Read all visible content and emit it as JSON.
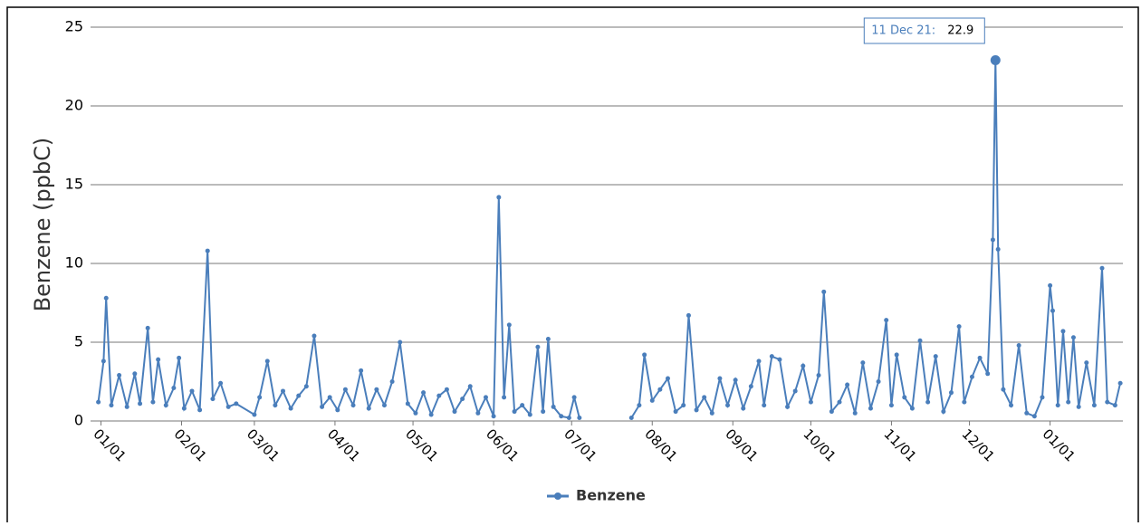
{
  "chart_data": {
    "type": "line",
    "ylabel": "Benzene (ppbC)",
    "xlim": [
      "2020-12-28",
      "2022-01-29"
    ],
    "xticks": [
      {
        "value": "2021-01-01",
        "label": "01/01"
      },
      {
        "value": "2021-02-01",
        "label": "02/01"
      },
      {
        "value": "2021-03-01",
        "label": "03/01"
      },
      {
        "value": "2021-04-01",
        "label": "04/01"
      },
      {
        "value": "2021-05-01",
        "label": "05/01"
      },
      {
        "value": "2021-06-01",
        "label": "06/01"
      },
      {
        "value": "2021-07-01",
        "label": "07/01"
      },
      {
        "value": "2021-08-01",
        "label": "08/01"
      },
      {
        "value": "2021-09-01",
        "label": "09/01"
      },
      {
        "value": "2021-10-01",
        "label": "10/01"
      },
      {
        "value": "2021-11-01",
        "label": "11/01"
      },
      {
        "value": "2021-12-01",
        "label": "12/01"
      },
      {
        "value": "2022-01-01",
        "label": "01/01"
      }
    ],
    "ylim": [
      0,
      25
    ],
    "yticks": [
      0,
      5,
      10,
      15,
      20,
      25
    ],
    "grid": true,
    "legend": "bottom",
    "tooltip": {
      "label": "11 Dec 21:"
    },
    "x": [
      "2020-12-31",
      "2021-01-02",
      "2021-01-03",
      "2021-01-05",
      "2021-01-08",
      "2021-01-11",
      "2021-01-14",
      "2021-01-16",
      "2021-01-19",
      "2021-01-21",
      "2021-01-23",
      "2021-01-26",
      "2021-01-29",
      "2021-01-31",
      "2021-02-02",
      "2021-02-05",
      "2021-02-08",
      "2021-02-11",
      "2021-02-13",
      "2021-02-16",
      "2021-02-19",
      "2021-02-22",
      "2021-03-01",
      "2021-03-03",
      "2021-03-06",
      "2021-03-09",
      "2021-03-12",
      "2021-03-15",
      "2021-03-18",
      "2021-03-21",
      "2021-03-24",
      "2021-03-27",
      "2021-03-30",
      "2021-04-02",
      "2021-04-05",
      "2021-04-08",
      "2021-04-11",
      "2021-04-14",
      "2021-04-17",
      "2021-04-20",
      "2021-04-23",
      "2021-04-26",
      "2021-04-29",
      "2021-05-02",
      "2021-05-05",
      "2021-05-08",
      "2021-05-11",
      "2021-05-14",
      "2021-05-17",
      "2021-05-20",
      "2021-05-23",
      "2021-05-26",
      "2021-05-29",
      "2021-06-01",
      "2021-06-03",
      "2021-06-05",
      "2021-06-07",
      "2021-06-09",
      "2021-06-12",
      "2021-06-15",
      "2021-06-18",
      "2021-06-20",
      "2021-06-22",
      "2021-06-24",
      "2021-06-27",
      "2021-06-30",
      "2021-07-02",
      "2021-07-04",
      "2021-07-12",
      "2021-07-24",
      "2021-07-27",
      "2021-07-29",
      "2021-08-01",
      "2021-08-04",
      "2021-08-07",
      "2021-08-10",
      "2021-08-13",
      "2021-08-15",
      "2021-08-18",
      "2021-08-21",
      "2021-08-24",
      "2021-08-27",
      "2021-08-30",
      "2021-09-02",
      "2021-09-05",
      "2021-09-08",
      "2021-09-11",
      "2021-09-13",
      "2021-09-16",
      "2021-09-19",
      "2021-09-22",
      "2021-09-25",
      "2021-09-28",
      "2021-10-01",
      "2021-10-04",
      "2021-10-06",
      "2021-10-09",
      "2021-10-12",
      "2021-10-15",
      "2021-10-18",
      "2021-10-21",
      "2021-10-24",
      "2021-10-27",
      "2021-10-30",
      "2021-11-01",
      "2021-11-03",
      "2021-11-06",
      "2021-11-09",
      "2021-11-12",
      "2021-11-15",
      "2021-11-18",
      "2021-11-21",
      "2021-11-24",
      "2021-11-27",
      "2021-11-29",
      "2021-12-02",
      "2021-12-05",
      "2021-12-08",
      "2021-12-10",
      "2021-12-11",
      "2021-12-12",
      "2021-12-14",
      "2021-12-17",
      "2021-12-20",
      "2021-12-23",
      "2021-12-26",
      "2021-12-29",
      "2022-01-01",
      "2022-01-02",
      "2022-01-04",
      "2022-01-06",
      "2022-01-08",
      "2022-01-10",
      "2022-01-12",
      "2022-01-15",
      "2022-01-18",
      "2022-01-21",
      "2022-01-23",
      "2022-01-26",
      "2022-01-28"
    ],
    "series": [
      {
        "name": "Benzene",
        "color": "#4a7ebb",
        "values": [
          1.2,
          3.8,
          7.8,
          1.0,
          2.9,
          0.9,
          3.0,
          1.1,
          5.9,
          1.2,
          3.9,
          1.0,
          2.1,
          4.0,
          0.8,
          1.9,
          0.7,
          10.8,
          1.4,
          2.4,
          0.9,
          1.1,
          0.4,
          1.5,
          3.8,
          1.0,
          1.9,
          0.8,
          1.6,
          2.2,
          5.4,
          0.9,
          1.5,
          0.7,
          2.0,
          1.0,
          3.2,
          0.8,
          2.0,
          1.0,
          2.5,
          5.0,
          1.1,
          0.5,
          1.8,
          0.4,
          1.6,
          2.0,
          0.6,
          1.4,
          2.2,
          0.5,
          1.5,
          0.3,
          14.2,
          1.5,
          6.1,
          0.6,
          1.0,
          0.4,
          4.7,
          0.6,
          5.2,
          0.9,
          0.3,
          0.2,
          1.5,
          0.2,
          null,
          0.2,
          1.0,
          4.2,
          1.3,
          2.0,
          2.7,
          0.6,
          1.0,
          6.7,
          0.7,
          1.5,
          0.5,
          2.7,
          1.0,
          2.6,
          0.8,
          2.2,
          3.8,
          1.0,
          4.1,
          3.9,
          0.9,
          1.9,
          3.5,
          1.2,
          2.9,
          8.2,
          0.6,
          1.2,
          2.3,
          0.5,
          3.7,
          0.8,
          2.5,
          6.4,
          1.0,
          4.2,
          1.5,
          0.8,
          5.1,
          1.2,
          4.1,
          0.6,
          1.8,
          6.0,
          1.2,
          2.8,
          4.0,
          3.0,
          11.5,
          22.9,
          10.9,
          2.0,
          1.0,
          4.8,
          0.5,
          0.3,
          1.5,
          8.6,
          7.0,
          1.0,
          5.7,
          1.2,
          5.3,
          0.9,
          3.7,
          1.0,
          9.7,
          1.2,
          1.0,
          2.4
        ]
      }
    ]
  }
}
